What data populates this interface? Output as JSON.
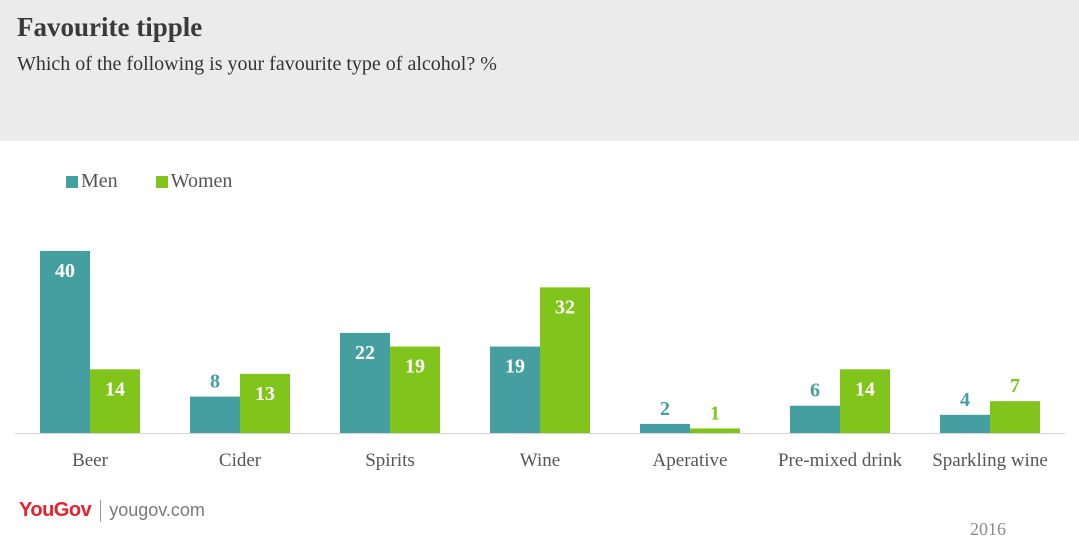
{
  "header": {
    "title": "Favourite tipple",
    "subtitle": "Which of the following is your favourite type of alcohol? %"
  },
  "footer": {
    "brand": "YouGov",
    "url": "yougov.com",
    "year": "2016"
  },
  "colors": {
    "men": "#459e9f",
    "women": "#80c41c",
    "header_bg": "#ebebeb"
  },
  "chart_data": {
    "type": "bar",
    "title": "Favourite tipple",
    "subtitle": "Which of the following is your favourite type of alcohol? %",
    "categories": [
      "Beer",
      "Cider",
      "Spirits",
      "Wine",
      "Aperative",
      "Pre-mixed drink",
      "Sparkling wine"
    ],
    "series": [
      {
        "name": "Men",
        "values": [
          40,
          8,
          22,
          19,
          2,
          6,
          4
        ]
      },
      {
        "name": "Women",
        "values": [
          14,
          13,
          19,
          32,
          1,
          14,
          7
        ]
      }
    ],
    "ylim": [
      0,
      40
    ],
    "legend": "top-left",
    "grid": false
  }
}
